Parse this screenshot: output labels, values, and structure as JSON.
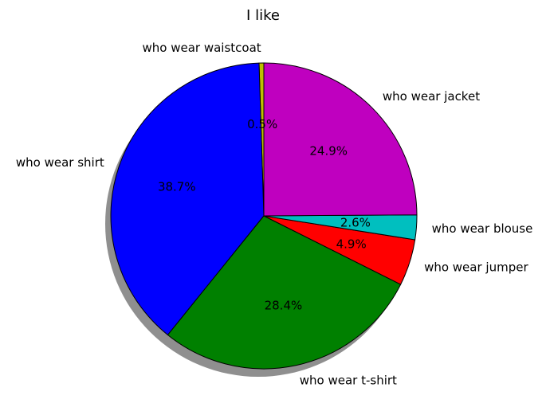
{
  "chart_data": {
    "type": "pie",
    "title": "I like",
    "start_angle_deg": 90,
    "direction": "counterclockwise",
    "shadow": true,
    "slices": [
      {
        "label": "who wear waistcoat",
        "value": 0.5,
        "pct_label": "0.5%",
        "color": "#bfbf00"
      },
      {
        "label": "who wear shirt",
        "value": 38.7,
        "pct_label": "38.7%",
        "color": "#0000ff"
      },
      {
        "label": "who wear t-shirt",
        "value": 28.4,
        "pct_label": "28.4%",
        "color": "#008000"
      },
      {
        "label": "who wear jumper",
        "value": 4.9,
        "pct_label": "4.9%",
        "color": "#ff0000"
      },
      {
        "label": "who wear blouse",
        "value": 2.6,
        "pct_label": "2.6%",
        "color": "#00bfbf"
      },
      {
        "label": "who wear jacket",
        "value": 24.9,
        "pct_label": "24.9%",
        "color": "#bf00bf"
      }
    ]
  }
}
